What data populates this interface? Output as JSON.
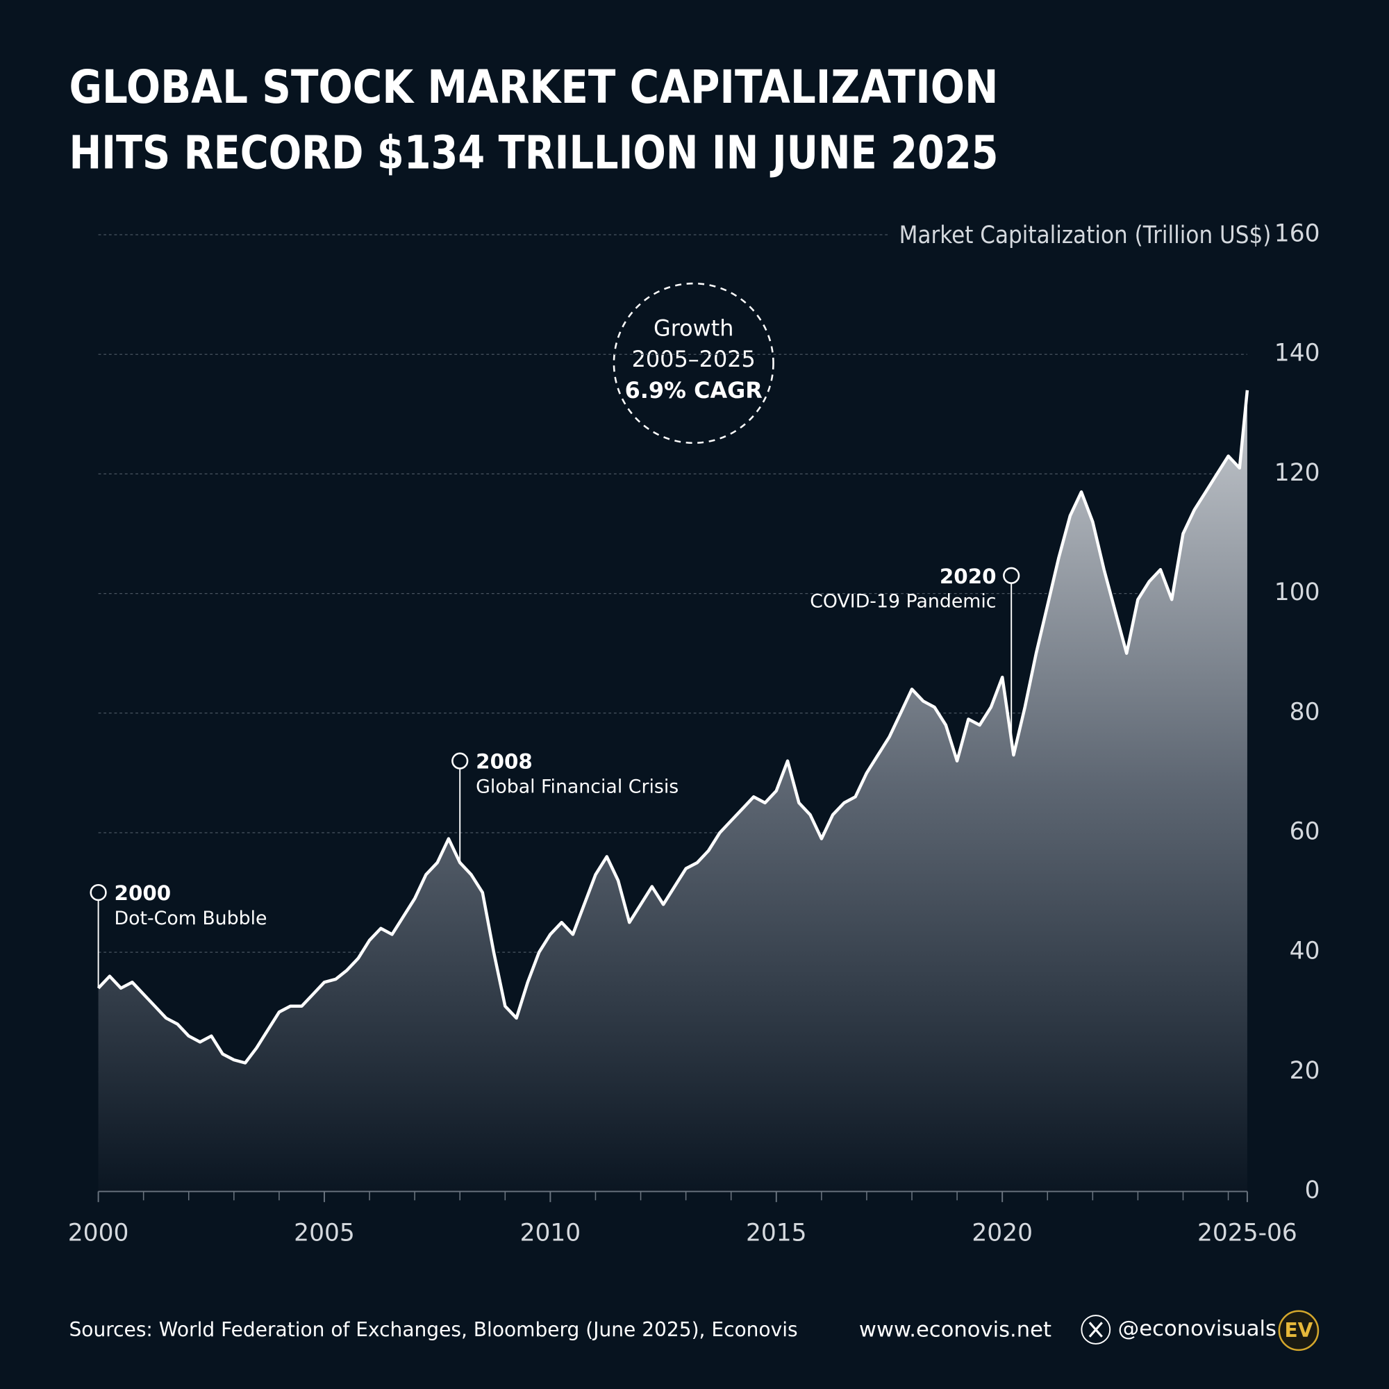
{
  "chart_data": {
    "type": "area",
    "title": [
      "GLOBAL STOCK MARKET CAPITALIZATION",
      "HITS RECORD $134 TRILLION IN JUNE 2025"
    ],
    "y_axis_label": "Market Capitalization (Trillion US$)",
    "callout": [
      "Growth",
      "2005–2025",
      "6.9% CAGR"
    ],
    "x": [
      2000.0,
      2000.25,
      2000.5,
      2000.75,
      2001.0,
      2001.25,
      2001.5,
      2001.75,
      2002.0,
      2002.25,
      2002.5,
      2002.75,
      2003.0,
      2003.25,
      2003.5,
      2003.75,
      2004.0,
      2004.25,
      2004.5,
      2004.75,
      2005.0,
      2005.25,
      2005.5,
      2005.75,
      2006.0,
      2006.25,
      2006.5,
      2006.75,
      2007.0,
      2007.25,
      2007.5,
      2007.75,
      2008.0,
      2008.25,
      2008.5,
      2008.75,
      2009.0,
      2009.25,
      2009.5,
      2009.75,
      2010.0,
      2010.25,
      2010.5,
      2010.75,
      2011.0,
      2011.25,
      2011.5,
      2011.75,
      2012.0,
      2012.25,
      2012.5,
      2012.75,
      2013.0,
      2013.25,
      2013.5,
      2013.75,
      2014.0,
      2014.25,
      2014.5,
      2014.75,
      2015.0,
      2015.25,
      2015.5,
      2015.75,
      2016.0,
      2016.25,
      2016.5,
      2016.75,
      2017.0,
      2017.25,
      2017.5,
      2017.75,
      2018.0,
      2018.25,
      2018.5,
      2018.75,
      2019.0,
      2019.25,
      2019.5,
      2019.75,
      2020.0,
      2020.25,
      2020.5,
      2020.75,
      2021.0,
      2021.25,
      2021.5,
      2021.75,
      2022.0,
      2022.25,
      2022.5,
      2022.75,
      2023.0,
      2023.25,
      2023.5,
      2023.75,
      2024.0,
      2024.25,
      2024.5,
      2024.75,
      2025.0,
      2025.25,
      2025.42
    ],
    "series": [
      {
        "name": "Market Capitalization",
        "color": "#ffffff",
        "values": [
          34,
          36,
          34,
          35,
          33,
          31,
          29,
          28,
          26,
          25,
          26,
          23,
          22,
          21.5,
          24,
          27,
          30,
          31,
          31,
          33,
          35,
          35.5,
          37,
          39,
          42,
          44,
          43,
          46,
          49,
          53,
          55,
          59,
          55,
          53,
          50,
          40,
          31,
          29,
          35,
          40,
          43,
          45,
          43,
          48,
          53,
          56,
          52,
          45,
          48,
          51,
          48,
          51,
          54,
          55,
          57,
          60,
          62,
          64,
          66,
          65,
          67,
          72,
          65,
          63,
          59,
          63,
          65,
          66,
          70,
          73,
          76,
          80,
          84,
          82,
          81,
          78,
          72,
          79,
          78,
          81,
          86,
          73,
          81,
          90,
          98,
          106,
          113,
          117,
          112,
          104,
          97,
          90,
          99,
          102,
          104,
          99,
          110,
          114,
          117,
          120,
          123,
          121,
          134
        ]
      }
    ],
    "xlim": [
      2000,
      2025.42
    ],
    "ylim": [
      0,
      160
    ],
    "yticks": [
      0,
      20,
      40,
      60,
      80,
      100,
      120,
      140,
      160
    ],
    "xticks": [
      2000,
      2005,
      2010,
      2015,
      2020,
      {
        "value": 2025.42,
        "label": "2025-06"
      }
    ],
    "xminorticks": [
      2001,
      2002,
      2003,
      2004,
      2006,
      2007,
      2008,
      2009,
      2011,
      2012,
      2013,
      2014,
      2016,
      2017,
      2018,
      2019,
      2021,
      2022,
      2023,
      2024,
      2025
    ],
    "grid": true,
    "annotations": [
      {
        "x": 2000,
        "y": 50,
        "label": "2000",
        "text": "Dot-Com Bubble"
      },
      {
        "x": 2008,
        "y": 72,
        "label": "2008",
        "text": "Global Financial Crisis"
      },
      {
        "x": 2020.2,
        "y": 103,
        "label": "2020",
        "text": "COVID-19 Pandemic"
      }
    ],
    "footer": {
      "source": "Sources: World Federation of Exchanges, Bloomberg (June 2025), Econovis",
      "website": "www.econovis.net",
      "handle": "@econovisuals",
      "logo": "EV"
    }
  }
}
